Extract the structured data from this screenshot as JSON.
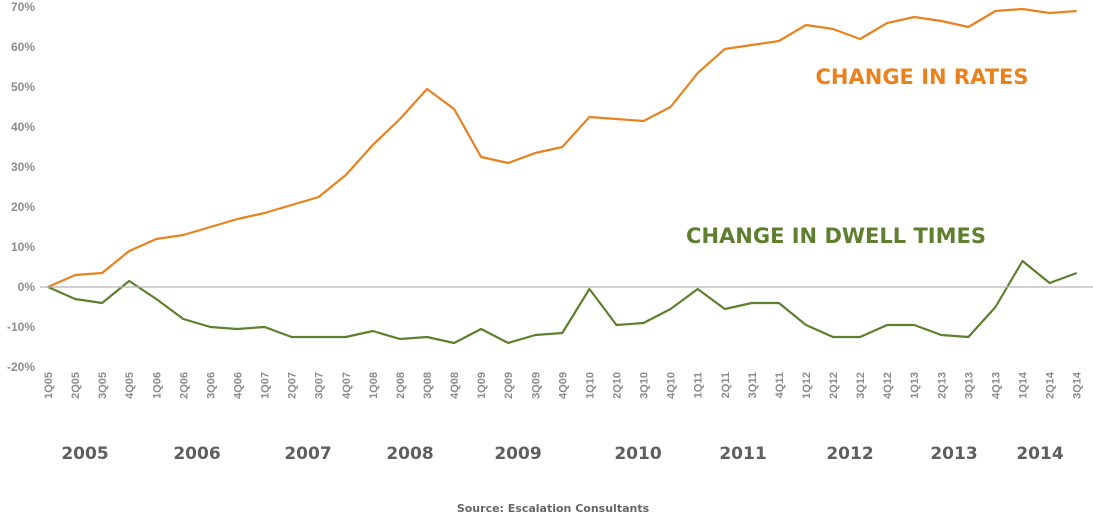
{
  "colors": {
    "rates": "#e8821e",
    "dwell": "#5f7f2f",
    "axis": "#b3b3b3"
  },
  "chart_data": {
    "type": "line",
    "categories": [
      "1Q05",
      "2Q05",
      "3Q05",
      "4Q05",
      "1Q06",
      "2Q06",
      "3Q06",
      "4Q06",
      "1Q07",
      "2Q07",
      "3Q07",
      "4Q07",
      "1Q08",
      "2Q08",
      "3Q08",
      "4Q08",
      "1Q09",
      "2Q09",
      "3Q09",
      "4Q09",
      "1Q10",
      "2Q10",
      "3Q10",
      "4Q10",
      "1Q11",
      "2Q11",
      "3Q11",
      "4Q11",
      "1Q12",
      "2Q12",
      "3Q12",
      "4Q12",
      "1Q13",
      "2Q13",
      "3Q13",
      "4Q13",
      "1Q14",
      "2Q14",
      "3Q14"
    ],
    "year_labels": [
      "2005",
      "2006",
      "2007",
      "2008",
      "2009",
      "2010",
      "2011",
      "2012",
      "2013",
      "2014"
    ],
    "y_ticks": [
      "70%",
      "60%",
      "50%",
      "40%",
      "30%",
      "20%",
      "10%",
      "0%",
      "-10%",
      "-20%"
    ],
    "ylim": [
      -20,
      70
    ],
    "grid": false,
    "series": [
      {
        "name": "CHANGE IN RATES",
        "values": [
          0,
          3,
          3.5,
          9,
          12,
          13,
          15,
          17,
          18.5,
          20.5,
          22.5,
          28,
          35.5,
          42,
          49.5,
          44.5,
          32.5,
          31,
          33.5,
          35,
          42.5,
          42,
          41.5,
          45,
          53.5,
          59.5,
          60.5,
          61.5,
          65.5,
          64.5,
          62,
          66,
          67.5,
          66.5,
          65,
          69,
          69.5,
          68.5,
          69
        ]
      },
      {
        "name": "CHANGE IN DWELL TIMES",
        "values": [
          0,
          -3,
          -4,
          1.5,
          -3,
          -8,
          -10,
          -10.5,
          -10,
          -12.5,
          -12.5,
          -12.5,
          -11,
          -13,
          -12.5,
          -14,
          -10.5,
          -14,
          -12,
          -11.5,
          -0.5,
          -9.5,
          -9,
          -5.5,
          -0.5,
          -5.5,
          -4,
          -4,
          -9.5,
          -12.5,
          -12.5,
          -9.5,
          -9.5,
          -12,
          -12.5,
          -5,
          6.5,
          1,
          3.5
        ]
      }
    ],
    "source": "Source: Escalation Consultants"
  }
}
